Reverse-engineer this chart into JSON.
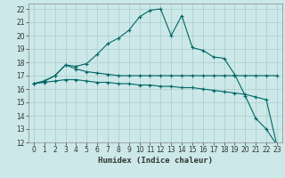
{
  "title": "",
  "xlabel": "Humidex (Indice chaleur)",
  "ylabel": "",
  "background_color": "#cce8e8",
  "grid_color": "#aacccc",
  "line_color": "#006666",
  "xlim": [
    -0.5,
    23.5
  ],
  "ylim": [
    12,
    22.4
  ],
  "xticks": [
    0,
    1,
    2,
    3,
    4,
    5,
    6,
    7,
    8,
    9,
    10,
    11,
    12,
    13,
    14,
    15,
    16,
    17,
    18,
    19,
    20,
    21,
    22,
    23
  ],
  "yticks": [
    12,
    13,
    14,
    15,
    16,
    17,
    18,
    19,
    20,
    21,
    22
  ],
  "curve1_x": [
    0,
    1,
    2,
    3,
    4,
    5,
    6,
    7,
    8,
    9,
    10,
    11,
    12,
    13,
    14,
    15,
    16,
    17,
    18,
    19,
    20,
    21,
    22,
    23
  ],
  "curve1_y": [
    16.4,
    16.6,
    17.0,
    17.8,
    17.7,
    17.9,
    18.6,
    19.4,
    19.8,
    20.4,
    21.4,
    21.9,
    22.0,
    20.0,
    21.5,
    19.1,
    18.9,
    18.4,
    18.3,
    17.1,
    15.5,
    13.8,
    13.0,
    11.8
  ],
  "curve2_x": [
    0,
    1,
    2,
    3,
    4,
    5,
    6,
    7,
    8,
    9,
    10,
    11,
    12,
    13,
    14,
    15,
    16,
    17,
    18,
    19,
    20,
    21,
    22,
    23
  ],
  "curve2_y": [
    16.4,
    16.6,
    17.0,
    17.8,
    17.5,
    17.3,
    17.2,
    17.1,
    17.0,
    17.0,
    17.0,
    17.0,
    17.0,
    17.0,
    17.0,
    17.0,
    17.0,
    17.0,
    17.0,
    17.0,
    17.0,
    17.0,
    17.0,
    17.0
  ],
  "curve3_x": [
    0,
    1,
    2,
    3,
    4,
    5,
    6,
    7,
    8,
    9,
    10,
    11,
    12,
    13,
    14,
    15,
    16,
    17,
    18,
    19,
    20,
    21,
    22,
    23
  ],
  "curve3_y": [
    16.4,
    16.5,
    16.6,
    16.7,
    16.7,
    16.6,
    16.5,
    16.5,
    16.4,
    16.4,
    16.3,
    16.3,
    16.2,
    16.2,
    16.1,
    16.1,
    16.0,
    15.9,
    15.8,
    15.7,
    15.6,
    15.4,
    15.2,
    11.8
  ],
  "tick_fontsize": 5.5,
  "xlabel_fontsize": 6.5
}
